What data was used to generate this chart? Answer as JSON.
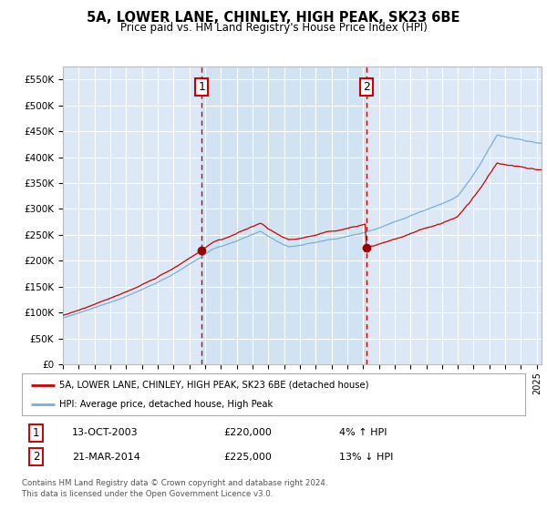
{
  "title": "5A, LOWER LANE, CHINLEY, HIGH PEAK, SK23 6BE",
  "subtitle": "Price paid vs. HM Land Registry's House Price Index (HPI)",
  "ylim": [
    0,
    575000
  ],
  "yticks": [
    0,
    50000,
    100000,
    150000,
    200000,
    250000,
    300000,
    350000,
    400000,
    450000,
    500000,
    550000
  ],
  "ytick_labels": [
    "£0",
    "£50K",
    "£100K",
    "£150K",
    "£200K",
    "£250K",
    "£300K",
    "£350K",
    "£400K",
    "£450K",
    "£500K",
    "£550K"
  ],
  "background_color": "#ffffff",
  "plot_background": "#dce8f5",
  "shade_color": "#dce8f5",
  "grid_color": "#ffffff",
  "sale1_x": 2003.79,
  "sale1_price": 220000,
  "sale2_x": 2014.22,
  "sale2_price": 225000,
  "legend_entry1": "5A, LOWER LANE, CHINLEY, HIGH PEAK, SK23 6BE (detached house)",
  "legend_entry2": "HPI: Average price, detached house, High Peak",
  "table_row1": [
    "1",
    "13-OCT-2003",
    "£220,000",
    "4% ↑ HPI"
  ],
  "table_row2": [
    "2",
    "21-MAR-2014",
    "£225,000",
    "13% ↓ HPI"
  ],
  "footer": "Contains HM Land Registry data © Crown copyright and database right 2024.\nThis data is licensed under the Open Government Licence v3.0.",
  "line_color_red": "#cc0000",
  "line_color_blue": "#7aafd4",
  "vline_color": "#cc0000",
  "box_color_red": "#cc0000",
  "xmin": 1995,
  "xmax": 2025.3
}
